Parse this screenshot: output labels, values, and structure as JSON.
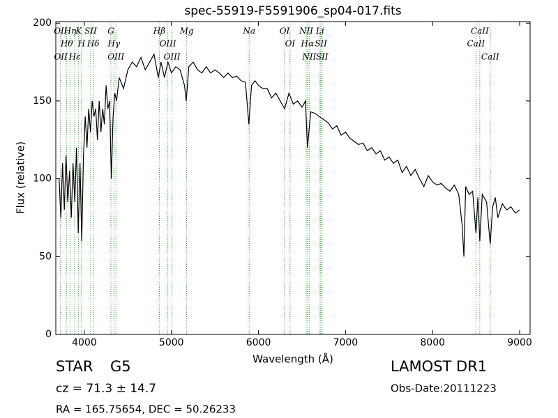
{
  "chart_data": {
    "type": "line",
    "title": "spec-55919-F5591906_sp04-017.fits",
    "x_label": "Wavelength (Å)",
    "y_label": "Flux (relative)",
    "xlim": [
      3672,
      9120
    ],
    "ylim": [
      0,
      201
    ],
    "xticks": [
      4000,
      5000,
      6000,
      7000,
      8000,
      9000
    ],
    "yticks": [
      0,
      50,
      100,
      150,
      200
    ],
    "color": "#000000",
    "line_color": "#2ca02c",
    "x": [
      3710,
      3730,
      3750,
      3770,
      3790,
      3810,
      3830,
      3850,
      3870,
      3890,
      3910,
      3930,
      3950,
      3970,
      3990,
      4010,
      4030,
      4050,
      4070,
      4090,
      4110,
      4130,
      4150,
      4170,
      4190,
      4210,
      4230,
      4250,
      4270,
      4290,
      4310,
      4330,
      4350,
      4370,
      4400,
      4450,
      4500,
      4550,
      4600,
      4650,
      4700,
      4750,
      4800,
      4850,
      4880,
      4920,
      4960,
      5000,
      5050,
      5100,
      5150,
      5170,
      5200,
      5250,
      5300,
      5350,
      5400,
      5450,
      5500,
      5550,
      5600,
      5650,
      5700,
      5750,
      5800,
      5850,
      5890,
      5920,
      5960,
      6000,
      6050,
      6100,
      6150,
      6200,
      6250,
      6300,
      6350,
      6400,
      6450,
      6500,
      6540,
      6563,
      6600,
      6650,
      6700,
      6750,
      6800,
      6850,
      6900,
      6950,
      7000,
      7050,
      7100,
      7150,
      7200,
      7250,
      7300,
      7350,
      7400,
      7450,
      7500,
      7550,
      7600,
      7650,
      7700,
      7750,
      7800,
      7850,
      7900,
      7950,
      8000,
      8050,
      8100,
      8150,
      8200,
      8250,
      8300,
      8340,
      8360,
      8380,
      8420,
      8460,
      8498,
      8520,
      8542,
      8570,
      8620,
      8662,
      8690,
      8720,
      8750,
      8800,
      8850,
      8900,
      8950,
      9000
    ],
    "values": [
      100,
      75,
      110,
      80,
      115,
      85,
      105,
      75,
      110,
      85,
      120,
      65,
      110,
      60,
      115,
      140,
      120,
      145,
      130,
      150,
      140,
      145,
      125,
      150,
      130,
      145,
      135,
      160,
      145,
      150,
      100,
      140,
      155,
      150,
      165,
      158,
      170,
      175,
      172,
      178,
      170,
      175,
      180,
      165,
      175,
      165,
      175,
      168,
      172,
      170,
      160,
      150,
      172,
      175,
      170,
      168,
      172,
      168,
      170,
      168,
      165,
      168,
      165,
      166,
      163,
      162,
      135,
      160,
      163,
      160,
      158,
      158,
      152,
      155,
      150,
      145,
      155,
      148,
      150,
      146,
      150,
      120,
      143,
      142,
      140,
      138,
      136,
      132,
      134,
      128,
      130,
      126,
      124,
      122,
      123,
      118,
      120,
      116,
      118,
      112,
      114,
      110,
      112,
      104,
      108,
      102,
      106,
      100,
      95,
      102,
      98,
      96,
      97,
      94,
      92,
      96,
      90,
      70,
      50,
      95,
      90,
      92,
      65,
      88,
      60,
      90,
      85,
      58,
      82,
      88,
      75,
      84,
      80,
      82,
      78,
      80
    ],
    "lines": [
      {
        "label": "OII",
        "x": 3727
      },
      {
        "label": "Hθ",
        "x": 3798
      },
      {
        "label": "OII",
        "x": 3729
      },
      {
        "label": "Hη",
        "x": 3835
      },
      {
        "label": "Hε",
        "x": 3889
      },
      {
        "label": "K",
        "x": 3934
      },
      {
        "label": "H",
        "x": 3968
      },
      {
        "label": "SII",
        "x": 4072
      },
      {
        "label": "Hδ",
        "x": 4102
      },
      {
        "label": "G",
        "x": 4305
      },
      {
        "label": "Hγ",
        "x": 4340
      },
      {
        "label": "OIII",
        "x": 4363
      },
      {
        "label": "Hβ",
        "x": 4861
      },
      {
        "label": "OIII",
        "x": 4959
      },
      {
        "label": "OIII",
        "x": 5007
      },
      {
        "label": "Mg",
        "x": 5175
      },
      {
        "label": "Na",
        "x": 5893
      },
      {
        "label": "OI",
        "x": 6300
      },
      {
        "label": "OI",
        "x": 6363
      },
      {
        "label": "NII",
        "x": 6548
      },
      {
        "label": "Hα",
        "x": 6563
      },
      {
        "label": "NII",
        "x": 6583
      },
      {
        "label": "Li",
        "x": 6707
      },
      {
        "label": "SII",
        "x": 6717
      },
      {
        "label": "SII",
        "x": 6731
      },
      {
        "label": "CaII",
        "x": 8542
      },
      {
        "label": "CaII",
        "x": 8498
      },
      {
        "label": "CaII",
        "x": 8662
      }
    ],
    "class_label": "STAR",
    "subclass": "G5",
    "redshift_text": "cz = 71.3 ± 14.7",
    "coords_text": "RA = 165.75654, DEC = 50.26233",
    "survey": "LAMOST DR1",
    "obs_date": "Obs-Date:20111223"
  }
}
